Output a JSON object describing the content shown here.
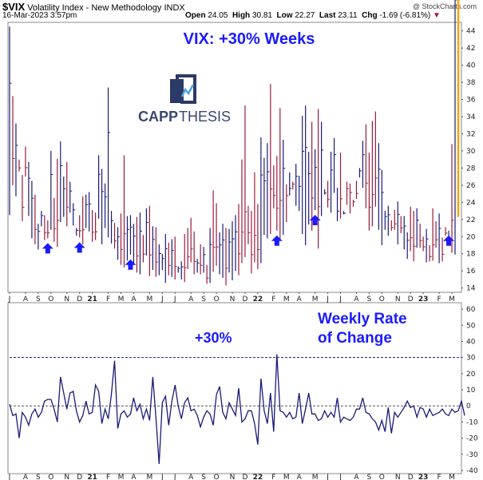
{
  "header": {
    "symbol": "$VIX",
    "name": "Volatility Index - New Methodology",
    "exchange": "INDX",
    "datetime": "16-Mar-2023 3:57pm",
    "open_label": "Open",
    "open": "24.05",
    "high_label": "High",
    "high": "30.81",
    "low_label": "Low",
    "low": "22.27",
    "last_label": "Last",
    "last": "23.11",
    "chg_label": "Chg",
    "chg": "-1.69 (-6.81%)",
    "credit": "@ StockCharts.com"
  },
  "annotations": {
    "main_title": "VIX: +30% Weeks",
    "logo_text_a": "CAPP",
    "logo_text_b": "THESIS",
    "roc_title_line1": "Weekly Rate",
    "roc_title_line2": "of Change",
    "plus30": "+30%"
  },
  "colors": {
    "up": "#1a1a7a",
    "down": "#9b1b3b",
    "last_bar": "#f5a800",
    "arrow": "#1a1aff",
    "roc_line": "#1a1a7a",
    "threshold": "#1a1a7a"
  },
  "chart_data": [
    {
      "type": "ohlc",
      "title": "VIX weekly",
      "y_ticks": [
        14,
        16,
        18,
        20,
        22,
        24,
        26,
        28,
        30,
        32,
        34,
        36,
        38,
        40,
        42,
        44
      ],
      "ylim": [
        13.5,
        45
      ],
      "x_labels": [
        "J",
        "A",
        "S",
        "O",
        "N",
        "D",
        "21",
        "F",
        "M",
        "A",
        "M",
        "J",
        "J",
        "A",
        "S",
        "O",
        "N",
        "D",
        "22",
        "F",
        "M",
        "A",
        "M",
        "J",
        "J",
        "A",
        "S",
        "O",
        "N",
        "D",
        "23",
        "F",
        "M"
      ],
      "x_label_bold": [
        "21",
        "22",
        "23"
      ],
      "x_label_week": [
        0,
        5,
        9,
        13,
        18,
        22,
        26,
        31,
        35,
        39,
        44,
        48,
        52,
        57,
        61,
        65,
        70,
        74,
        78,
        83,
        87,
        91,
        96,
        100,
        104,
        109,
        113,
        117,
        122,
        126,
        130,
        135,
        139
      ],
      "weeks": 142,
      "highs": [
        44.5,
        36.4,
        33.2,
        29.0,
        27.2,
        30.5,
        28.7,
        26.5,
        24.9,
        21.5,
        23.0,
        22.5,
        21.9,
        30.0,
        24.5,
        29.1,
        31.1,
        27.0,
        28.7,
        26.4,
        23.9,
        21.0,
        22.5,
        24.7,
        24.9,
        25.2,
        23.1,
        22.8,
        29.5,
        27.9,
        26.2,
        37.4,
        23.0,
        21.6,
        21.1,
        22.7,
        29.5,
        22.4,
        22.5,
        21.5,
        22.3,
        22.8,
        20.2,
        23.3,
        23.6,
        21.2,
        21.1,
        19.1,
        18.0,
        20.3,
        19.3,
        19.7,
        20.0,
        16.5,
        17.1,
        20.3,
        21.0,
        22.2,
        20.6,
        17.4,
        19.1,
        18.8,
        16.7,
        21.0,
        25.4,
        23.9,
        20.5,
        21.5,
        21.0,
        20.9,
        21.8,
        22.5,
        23.8,
        29.0,
        35.3,
        23.6,
        23.0,
        27.5,
        23.8,
        31.6,
        29.2,
        30.9,
        37.8,
        28.3,
        29.4,
        35.0,
        31.3,
        21.7,
        24.8,
        25.5,
        28.5,
        27.1,
        34.1,
        35.3,
        29.9,
        33.4,
        30.2,
        34.9,
        33.4,
        24.9,
        26.5,
        29.9,
        31.5,
        21.8,
        29.8,
        22.6,
        23.7,
        22.7,
        23.5,
        26.5,
        28.0,
        31.2,
        33.1,
        29.8,
        33.5,
        34.6,
        30.9,
        27.8,
        23.0,
        23.6,
        21.9,
        23.1,
        24.1,
        22.4,
        22.4,
        20.5,
        23.5,
        23.0,
        23.3,
        21.5,
        20.0,
        20.9,
        19.0,
        23.3,
        21.8,
        22.7,
        19.9,
        21.1,
        19.2,
        30.8
      ],
      "lows": [
        22.5,
        26.0,
        24.7,
        27.6,
        21.8,
        27.0,
        22.4,
        19.8,
        19.1,
        18.5,
        21.2,
        19.6,
        19.8,
        20.8,
        19.4,
        18.8,
        21.7,
        22.3,
        21.2,
        22.8,
        21.3,
        20.1,
        19.9,
        19.1,
        21.0,
        20.6,
        19.4,
        19.6,
        22.1,
        19.1,
        21.0,
        19.9,
        19.2,
        18.6,
        17.3,
        16.7,
        16.4,
        17.2,
        17.9,
        16.7,
        15.8,
        15.6,
        17.0,
        17.8,
        15.4,
        16.1,
        15.3,
        15.5,
        16.1,
        14.6,
        15.5,
        15.3,
        15.0,
        15.8,
        15.0,
        14.7,
        16.2,
        17.0,
        15.6,
        15.8,
        15.6,
        15.8,
        14.5,
        14.6,
        15.9,
        16.6,
        15.6,
        15.2,
        14.3,
        15.8,
        14.9,
        16.0,
        15.5,
        16.9,
        17.6,
        19.1,
        15.7,
        17.0,
        16.2,
        16.9,
        20.2,
        19.8,
        20.3,
        23.3,
        20.7,
        19.6,
        20.2,
        26.1,
        27.5,
        26.4,
        23.6,
        23.0,
        20.3,
        19.0,
        21.4,
        20.7,
        23.1,
        18.6,
        22.4,
        25.5,
        23.4,
        22.8,
        25.1,
        25.7,
        22.1,
        23.0,
        26.4,
        26.2,
        24.3,
        24.4,
        26.9,
        25.7,
        23.3,
        20.7,
        21.2,
        23.5,
        20.8,
        19.0,
        20.8,
        20.1,
        20.7,
        20.8,
        19.1,
        20.4,
        18.5,
        17.4,
        18.3,
        17.1,
        18.7,
        18.7,
        18.3,
        17.0,
        17.1,
        17.2,
        18.7,
        16.9,
        17.1,
        20.1,
        20.7,
        18.1,
        17.9,
        22.3
      ],
      "up": [
        1,
        0,
        1,
        0,
        0,
        0,
        1,
        1,
        0,
        1,
        1,
        0,
        0,
        1,
        0,
        0,
        1,
        1,
        0,
        1,
        1,
        1,
        0,
        0,
        1,
        1,
        0,
        0,
        1,
        1,
        1,
        1,
        1,
        0,
        1,
        0,
        0,
        1,
        1,
        1,
        0,
        1,
        0,
        1,
        0,
        1,
        0,
        1,
        1,
        1,
        0,
        1,
        0,
        1,
        1,
        0,
        0,
        0,
        0,
        1,
        0,
        1,
        0,
        1,
        0,
        0,
        1,
        1,
        0,
        1,
        1,
        1,
        0,
        0,
        0,
        0,
        0,
        0,
        0,
        1,
        1,
        1,
        0,
        0,
        0,
        0,
        1,
        0,
        1,
        0,
        1,
        1,
        1,
        1,
        1,
        0,
        1,
        0,
        1,
        1,
        0,
        1,
        1,
        1,
        0,
        1,
        0,
        0,
        0,
        0,
        1,
        1,
        0,
        0,
        0,
        0,
        1,
        1,
        1,
        1,
        0,
        0,
        1,
        0,
        1,
        1,
        0,
        0,
        1,
        0,
        0,
        1,
        0,
        0,
        0,
        1,
        0,
        0,
        1,
        0,
        1,
        0
      ],
      "arrows_at_week": [
        12,
        22,
        38,
        84,
        96,
        138
      ]
    },
    {
      "type": "line",
      "title": "Weekly Rate of Change",
      "y_ticks": [
        -40,
        -30,
        -20,
        -10,
        0,
        10,
        20,
        30,
        40,
        50,
        60
      ],
      "ylim": [
        -42,
        64
      ],
      "threshold": 30,
      "values": [
        1,
        -6,
        -5,
        -20,
        -4,
        -7,
        -12,
        -5,
        -2,
        -7,
        -4,
        3,
        4,
        4,
        -2,
        -10,
        18,
        8,
        -2,
        8,
        9,
        -3,
        -10,
        -6,
        3,
        -5,
        -4,
        13,
        9,
        -11,
        -2,
        -8,
        7,
        28,
        -14,
        -5,
        -3,
        -7,
        -5,
        5,
        -3,
        1,
        -8,
        -2,
        -9,
        18,
        -7,
        -36,
        2,
        6,
        -12,
        3,
        13,
        0,
        -8,
        2,
        5,
        -3,
        -2,
        -6,
        -13,
        -7,
        -3,
        -5,
        -12,
        7,
        12,
        -4,
        -8,
        2,
        -2,
        -6,
        11,
        -10,
        -8,
        -3,
        -3,
        -11,
        -24,
        17,
        -3,
        -11,
        8,
        -16,
        32,
        -3,
        -4,
        -7,
        -4,
        -8,
        -7,
        8,
        -11,
        -2,
        8,
        -5,
        -5,
        -9,
        -8,
        -3,
        -7,
        -4,
        -7,
        5,
        -10,
        -7,
        -8,
        -9,
        -7,
        -2,
        -2,
        5,
        -4,
        -5,
        -8,
        -10,
        -15,
        -9,
        -16,
        -1,
        -17,
        -4,
        -7,
        -4,
        -1,
        3,
        -1,
        0,
        -7,
        -1,
        -2,
        -7,
        -2,
        -6,
        -5,
        -4,
        -2,
        -5,
        -6,
        -2,
        -4,
        -3,
        3,
        -6
      ]
    }
  ]
}
